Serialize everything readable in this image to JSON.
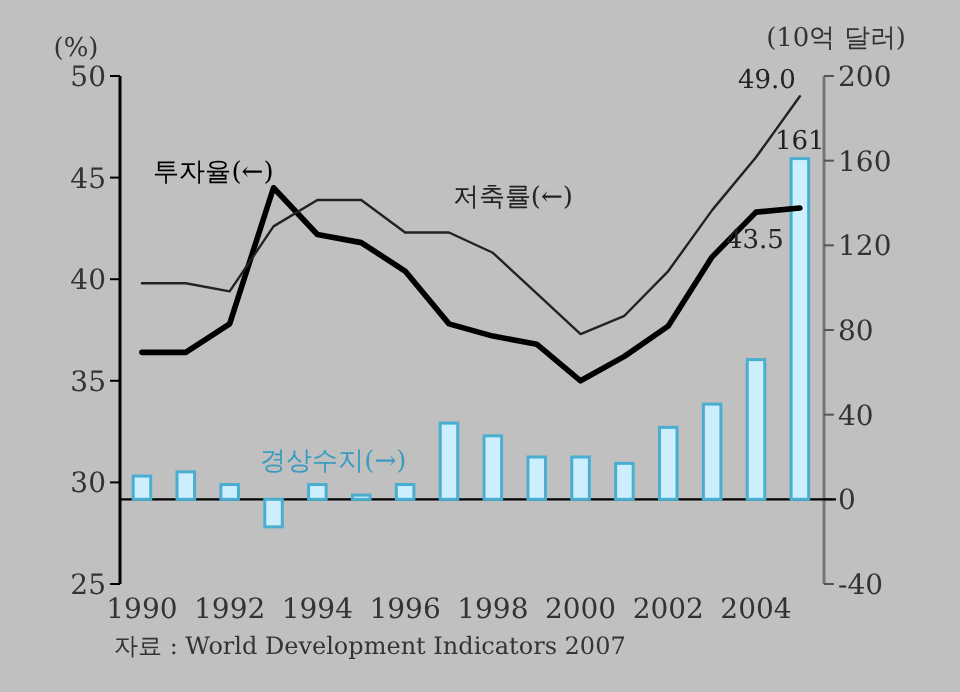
{
  "chart_data": {
    "type": "line",
    "ylabel": "(%)",
    "y2label": "(10억 달러)",
    "x": [
      1990,
      1991,
      1992,
      1993,
      1994,
      1995,
      1996,
      1997,
      1998,
      1999,
      2000,
      2001,
      2002,
      2003,
      2004,
      2005
    ],
    "xlim": [
      1989.5,
      2005.55
    ],
    "xticks": [
      1990,
      1992,
      1994,
      1996,
      1998,
      2000,
      2002,
      2004
    ],
    "ylim": [
      25,
      50
    ],
    "yticks": [
      25,
      30,
      35,
      40,
      45,
      50
    ],
    "y2lim": [
      -40,
      200
    ],
    "y2ticks": [
      -40,
      0,
      40,
      80,
      120,
      160,
      200
    ],
    "series": [
      {
        "name": "경상수지(→)",
        "type": "bar",
        "axis": "y2",
        "color": "#cdeefc",
        "values": [
          11,
          13,
          7,
          -13,
          7,
          2,
          7,
          36,
          30,
          20,
          20,
          17,
          34,
          45,
          66,
          161
        ],
        "value_labels": [
          null,
          null,
          null,
          null,
          null,
          null,
          null,
          null,
          null,
          null,
          null,
          null,
          null,
          null,
          null,
          "161"
        ]
      },
      {
        "name": "투자율(←)",
        "color": "#000000",
        "values": [
          36.4,
          36.4,
          37.8,
          44.5,
          42.2,
          41.8,
          40.4,
          37.8,
          37.2,
          36.8,
          35.0,
          36.2,
          37.7,
          41.1,
          43.3,
          43.5
        ],
        "value_labels": [
          null,
          null,
          null,
          null,
          null,
          null,
          null,
          null,
          null,
          null,
          null,
          null,
          null,
          null,
          null,
          "43.5"
        ]
      },
      {
        "name": "저축률(←)",
        "color": "#222222",
        "values": [
          39.8,
          39.8,
          39.4,
          42.6,
          43.9,
          43.9,
          42.3,
          42.3,
          41.3,
          39.3,
          37.3,
          38.2,
          40.4,
          43.4,
          46.0,
          49.0
        ],
        "value_labels": [
          null,
          null,
          null,
          null,
          null,
          null,
          null,
          null,
          null,
          null,
          null,
          null,
          null,
          null,
          null,
          "49.0"
        ]
      }
    ],
    "ref_lines": [
      {
        "axis": "y2",
        "value": 0
      }
    ],
    "grid": false,
    "legend": false,
    "marker": "none",
    "line_style": "solid",
    "annotations": [
      "자료 : World Development Indicators 2007"
    ]
  }
}
